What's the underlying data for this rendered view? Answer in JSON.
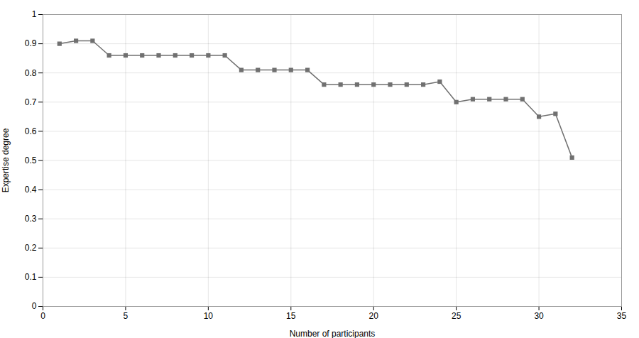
{
  "chart_data": {
    "type": "line",
    "x": [
      1,
      2,
      3,
      4,
      5,
      6,
      7,
      8,
      9,
      10,
      11,
      12,
      13,
      14,
      15,
      16,
      17,
      18,
      19,
      20,
      21,
      22,
      23,
      24,
      25,
      26,
      27,
      28,
      29,
      30,
      31,
      32
    ],
    "values": [
      0.9,
      0.91,
      0.91,
      0.86,
      0.86,
      0.86,
      0.86,
      0.86,
      0.86,
      0.86,
      0.86,
      0.81,
      0.81,
      0.81,
      0.81,
      0.81,
      0.76,
      0.76,
      0.76,
      0.76,
      0.76,
      0.76,
      0.76,
      0.77,
      0.7,
      0.71,
      0.71,
      0.71,
      0.71,
      0.65,
      0.66,
      0.51
    ],
    "color": "#707070",
    "marker": "square",
    "xlabel": "Number of participants",
    "ylabel": "Expertise degree",
    "xlim": [
      0,
      35
    ],
    "ylim": [
      0,
      1
    ],
    "xticks": [
      0,
      5,
      10,
      15,
      20,
      25,
      30,
      35
    ],
    "yticks": [
      0,
      0.1,
      0.2,
      0.3,
      0.4,
      0.5,
      0.6,
      0.7,
      0.8,
      0.9,
      1
    ],
    "grid": true
  }
}
